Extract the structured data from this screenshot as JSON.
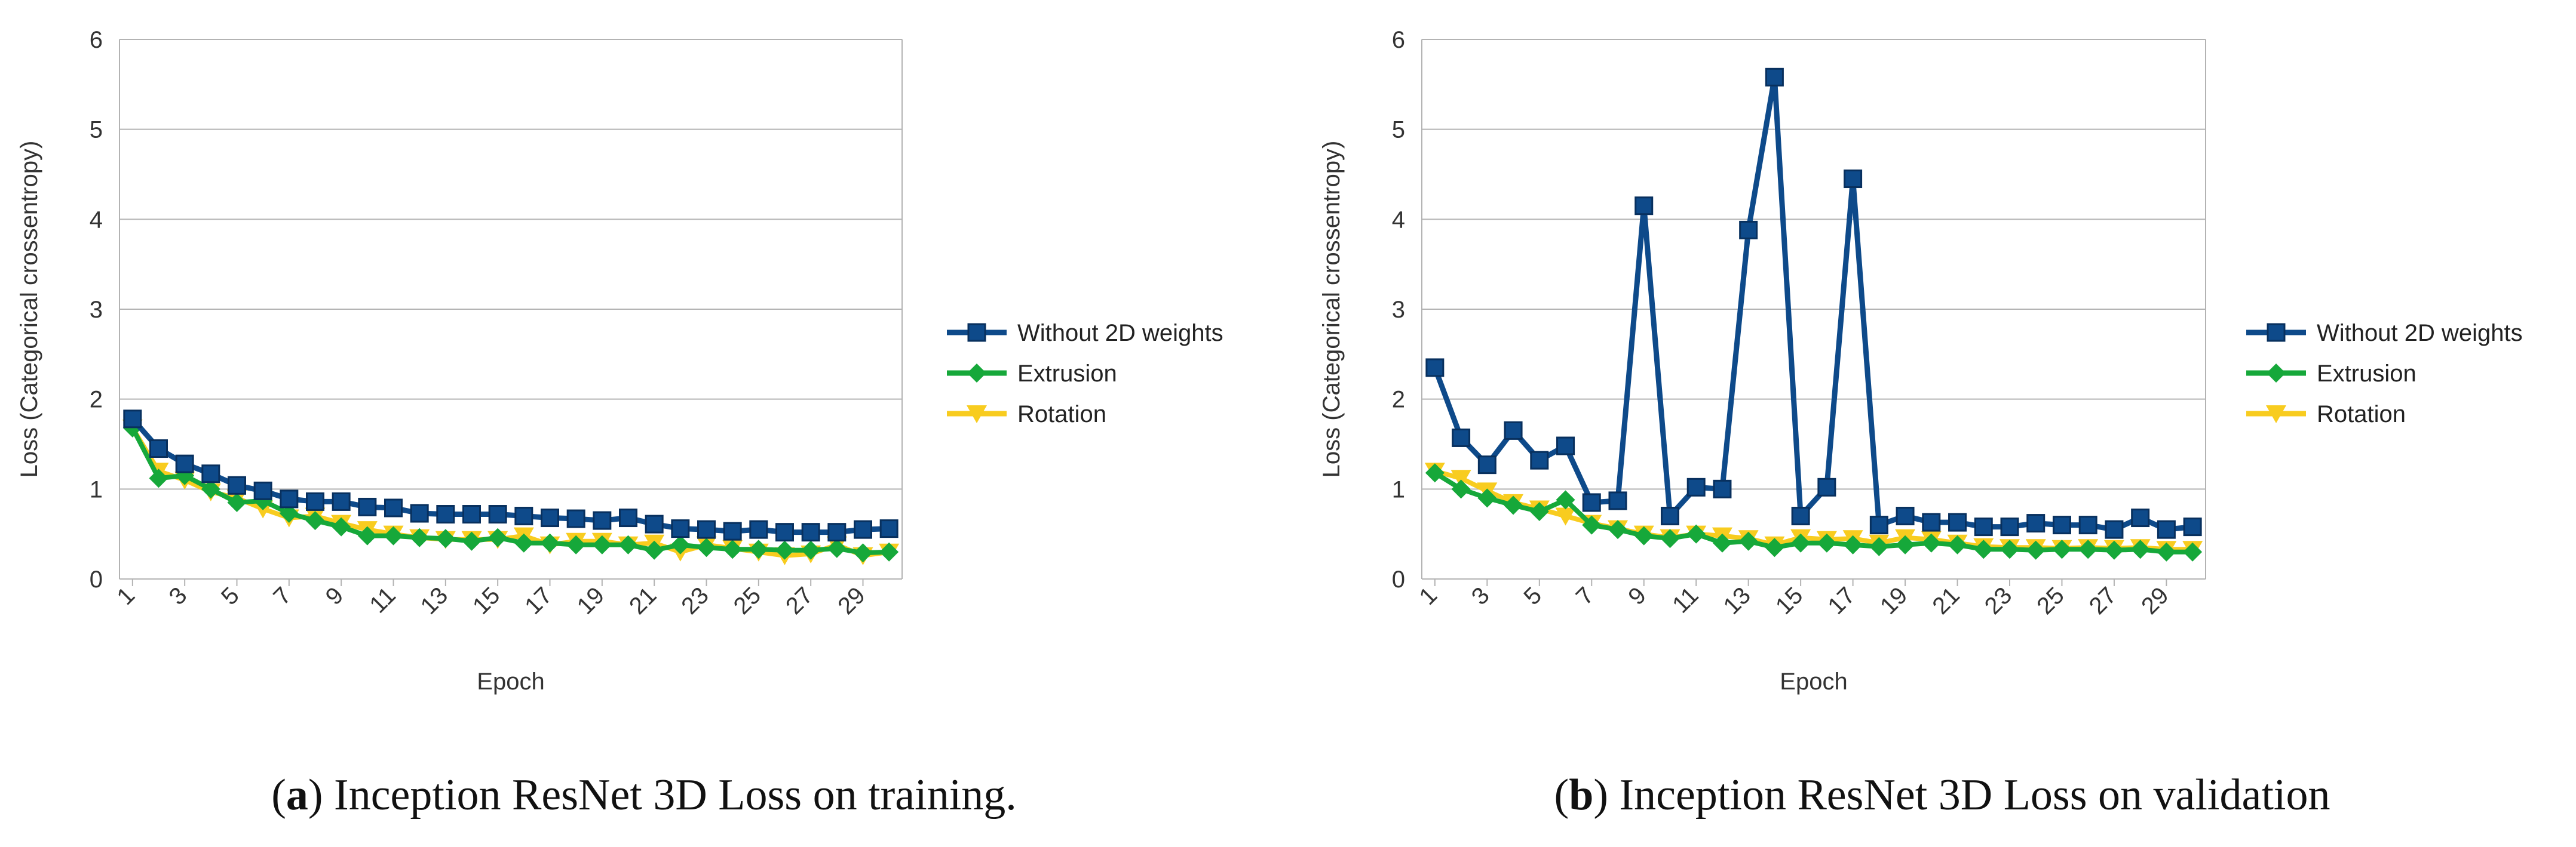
{
  "colors": {
    "without": "#0e4a8a",
    "extrusion": "#16a83a",
    "rotation": "#f8cc1f",
    "grid": "#b3b3b3"
  },
  "chart_data": [
    {
      "type": "line",
      "ylabel": "Loss (Categorical crossentropy)",
      "xlabel": "Epoch",
      "ylim": [
        0,
        6
      ],
      "yticks": [
        "0",
        "1",
        "2",
        "3",
        "4",
        "5",
        "6"
      ],
      "xtick_labels": [
        "1",
        "3",
        "5",
        "7",
        "9",
        "11",
        "13",
        "15",
        "17",
        "19",
        "21",
        "23",
        "25",
        "27",
        "29"
      ],
      "x": [
        1,
        2,
        3,
        4,
        5,
        6,
        7,
        8,
        9,
        10,
        11,
        12,
        13,
        14,
        15,
        16,
        17,
        18,
        19,
        20,
        21,
        22,
        23,
        24,
        25,
        26,
        27,
        28,
        29,
        30
      ],
      "grid": "horizontal",
      "legend_position": "right",
      "series": [
        {
          "name": "Without 2D weights",
          "marker": "square",
          "values": [
            1.78,
            1.45,
            1.28,
            1.17,
            1.04,
            0.98,
            0.89,
            0.86,
            0.86,
            0.8,
            0.79,
            0.73,
            0.72,
            0.72,
            0.72,
            0.7,
            0.68,
            0.67,
            0.65,
            0.68,
            0.61,
            0.56,
            0.55,
            0.53,
            0.55,
            0.52,
            0.52,
            0.52,
            0.55,
            0.56
          ]
        },
        {
          "name": "Extrusion",
          "marker": "diamond",
          "values": [
            1.68,
            1.12,
            1.15,
            1.0,
            0.85,
            0.87,
            0.73,
            0.65,
            0.58,
            0.48,
            0.48,
            0.46,
            0.45,
            0.42,
            0.46,
            0.4,
            0.4,
            0.38,
            0.38,
            0.38,
            0.32,
            0.38,
            0.35,
            0.33,
            0.33,
            0.32,
            0.32,
            0.34,
            0.29,
            0.3
          ]
        },
        {
          "name": "Rotation",
          "marker": "triangle",
          "values": [
            1.68,
            1.2,
            1.1,
            0.97,
            0.9,
            0.78,
            0.68,
            0.7,
            0.62,
            0.55,
            0.5,
            0.46,
            0.44,
            0.44,
            0.44,
            0.48,
            0.38,
            0.42,
            0.42,
            0.38,
            0.4,
            0.3,
            0.38,
            0.34,
            0.3,
            0.26,
            0.28,
            0.38,
            0.26,
            0.3
          ]
        }
      ],
      "caption_label": "a",
      "caption_text": ") Inception ResNet 3D Loss on training."
    },
    {
      "type": "line",
      "ylabel": "Loss (Categorical crossentropy)",
      "xlabel": "Epoch",
      "ylim": [
        0,
        6
      ],
      "yticks": [
        "0",
        "1",
        "2",
        "3",
        "4",
        "5",
        "6"
      ],
      "xtick_labels": [
        "1",
        "3",
        "5",
        "7",
        "9",
        "11",
        "13",
        "15",
        "17",
        "19",
        "21",
        "23",
        "25",
        "27",
        "29"
      ],
      "x": [
        1,
        2,
        3,
        4,
        5,
        6,
        7,
        8,
        9,
        10,
        11,
        12,
        13,
        14,
        15,
        16,
        17,
        18,
        19,
        20,
        21,
        22,
        23,
        24,
        25,
        26,
        27,
        28,
        29,
        30
      ],
      "grid": "horizontal",
      "legend_position": "right",
      "series": [
        {
          "name": "Without 2D weights",
          "marker": "square",
          "values": [
            2.35,
            1.57,
            1.27,
            1.65,
            1.32,
            1.48,
            0.85,
            0.87,
            4.15,
            0.7,
            1.02,
            1.0,
            3.88,
            5.58,
            0.7,
            1.02,
            4.45,
            0.6,
            0.7,
            0.63,
            0.63,
            0.58,
            0.58,
            0.62,
            0.6,
            0.6,
            0.55,
            0.68,
            0.55,
            0.58
          ]
        },
        {
          "name": "Extrusion",
          "marker": "diamond",
          "values": [
            1.18,
            1.0,
            0.9,
            0.82,
            0.75,
            0.88,
            0.6,
            0.55,
            0.48,
            0.45,
            0.5,
            0.4,
            0.42,
            0.35,
            0.4,
            0.4,
            0.38,
            0.36,
            0.38,
            0.4,
            0.38,
            0.33,
            0.33,
            0.32,
            0.33,
            0.33,
            0.32,
            0.33,
            0.3,
            0.3
          ]
        },
        {
          "name": "Rotation",
          "marker": "triangle",
          "values": [
            1.2,
            1.12,
            0.98,
            0.85,
            0.78,
            0.7,
            0.62,
            0.56,
            0.5,
            0.46,
            0.5,
            0.48,
            0.45,
            0.38,
            0.46,
            0.44,
            0.45,
            0.4,
            0.46,
            0.44,
            0.4,
            0.36,
            0.35,
            0.35,
            0.34,
            0.35,
            0.34,
            0.35,
            0.33,
            0.33
          ]
        }
      ],
      "caption_label": "b",
      "caption_text": ") Inception ResNet 3D Loss on validation"
    }
  ]
}
